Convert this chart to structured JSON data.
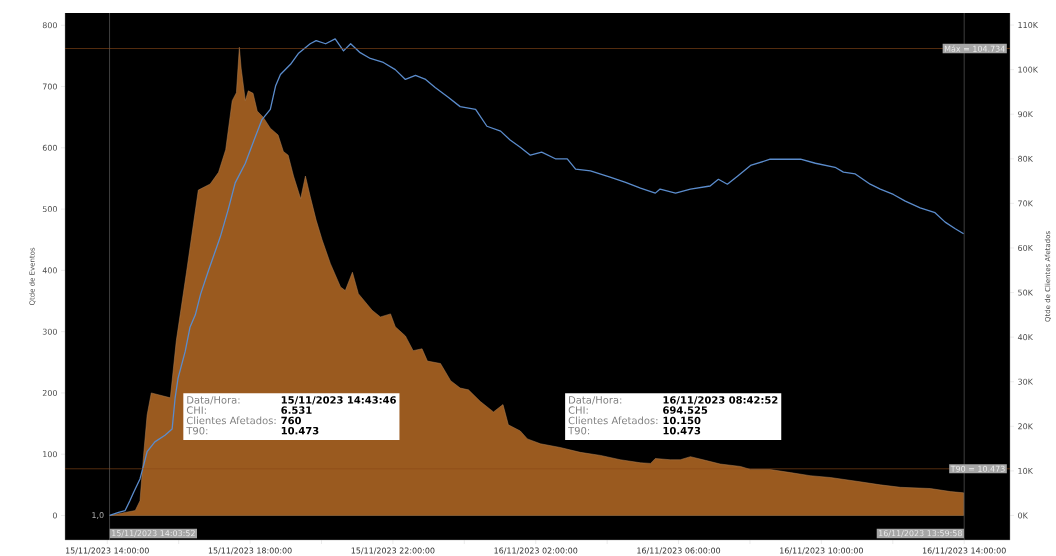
{
  "chart_data": {
    "type": "area",
    "ylabel": "Qtde de Eventos",
    "y2label": "Qtde de Clientes Afetados",
    "xlim": [
      "2023-11-15T12:49",
      "2023-11-16T15:17"
    ],
    "xticks": [
      {
        "value": "2023-11-15T14:00",
        "label": "15/11/2023 14:00:00"
      },
      {
        "value": "2023-11-15T16:00",
        "label": null
      },
      {
        "value": "2023-11-15T18:00",
        "label": "15/11/2023 18:00:00"
      },
      {
        "value": "2023-11-15T20:00",
        "label": null
      },
      {
        "value": "2023-11-15T22:00",
        "label": "15/11/2023 22:00:00"
      },
      {
        "value": "2023-11-16T00:00",
        "label": null
      },
      {
        "value": "2023-11-16T02:00",
        "label": "16/11/2023 02:00:00"
      },
      {
        "value": "2023-11-16T04:00",
        "label": null
      },
      {
        "value": "2023-11-16T06:00",
        "label": "16/11/2023 06:00:00"
      },
      {
        "value": "2023-11-16T08:00",
        "label": null
      },
      {
        "value": "2023-11-16T10:00",
        "label": "16/11/2023 10:00:00"
      },
      {
        "value": "2023-11-16T12:00",
        "label": null
      },
      {
        "value": "2023-11-16T14:00",
        "label": "16/11/2023 14:00:00"
      }
    ],
    "ylim": [
      -40,
      820
    ],
    "yticks": [
      0,
      100,
      200,
      300,
      400,
      500,
      600,
      700,
      800
    ],
    "y2lim": [
      -5500,
      112700
    ],
    "y2ticks": [
      {
        "value": 0,
        "label": "0K"
      },
      {
        "value": 10000,
        "label": "10K"
      },
      {
        "value": 20000,
        "label": "20K"
      },
      {
        "value": 30000,
        "label": "30K"
      },
      {
        "value": 40000,
        "label": "40K"
      },
      {
        "value": 50000,
        "label": "50K"
      },
      {
        "value": 60000,
        "label": "60K"
      },
      {
        "value": 70000,
        "label": "70K"
      },
      {
        "value": 80000,
        "label": "80K"
      },
      {
        "value": 90000,
        "label": "90K"
      },
      {
        "value": 100000,
        "label": "100K"
      },
      {
        "value": 110000,
        "label": "110K"
      }
    ],
    "series": [
      {
        "color": "#9a5a1f",
        "x": [
          "2023-11-15T14:04",
          "2023-11-15T14:30",
          "2023-11-15T14:47",
          "2023-11-15T14:55",
          "2023-11-15T15:01",
          "2023-11-15T15:07",
          "2023-11-15T15:14",
          "2023-11-15T15:46",
          "2023-11-15T15:56",
          "2023-11-15T16:13",
          "2023-11-15T16:21",
          "2023-11-15T16:33",
          "2023-11-15T16:53",
          "2023-11-15T17:07",
          "2023-11-15T17:19",
          "2023-11-15T17:30",
          "2023-11-15T17:37",
          "2023-11-15T17:42",
          "2023-11-15T17:45",
          "2023-11-15T17:52",
          "2023-11-15T17:57",
          "2023-11-15T18:05",
          "2023-11-15T18:12",
          "2023-11-15T18:22",
          "2023-11-15T18:34",
          "2023-11-15T18:47",
          "2023-11-15T18:56",
          "2023-11-15T19:04",
          "2023-11-15T19:13",
          "2023-11-15T19:25",
          "2023-11-15T19:33",
          "2023-11-15T19:41",
          "2023-11-15T19:51",
          "2023-11-15T20:01",
          "2023-11-15T20:15",
          "2023-11-15T20:32",
          "2023-11-15T20:40",
          "2023-11-15T20:52",
          "2023-11-15T21:02",
          "2023-11-15T21:25",
          "2023-11-15T21:39",
          "2023-11-15T21:56",
          "2023-11-15T22:04",
          "2023-11-15T22:21",
          "2023-11-15T22:34",
          "2023-11-15T22:49",
          "2023-11-15T22:58",
          "2023-11-15T23:20",
          "2023-11-15T23:37",
          "2023-11-15T23:53",
          "2023-11-16T00:07",
          "2023-11-16T00:27",
          "2023-11-16T00:49",
          "2023-11-16T01:05",
          "2023-11-16T01:14",
          "2023-11-16T01:34",
          "2023-11-16T01:46",
          "2023-11-16T02:08",
          "2023-11-16T02:41",
          "2023-11-16T03:15",
          "2023-11-16T03:49",
          "2023-11-16T04:22",
          "2023-11-16T04:56",
          "2023-11-16T05:13",
          "2023-11-16T05:21",
          "2023-11-16T05:46",
          "2023-11-16T06:03",
          "2023-11-16T06:20",
          "2023-11-16T06:45",
          "2023-11-16T07:10",
          "2023-11-16T07:44",
          "2023-11-16T08:01",
          "2023-11-16T08:34",
          "2023-11-16T09:08",
          "2023-11-16T09:41",
          "2023-11-16T10:15",
          "2023-11-16T11:05",
          "2023-11-16T11:39",
          "2023-11-16T12:13",
          "2023-11-16T13:03",
          "2023-11-16T13:37",
          "2023-11-16T13:59"
        ],
        "values": [
          0,
          5,
          8,
          24,
          98,
          164,
          200,
          192,
          285,
          396,
          450,
          531,
          541,
          560,
          597,
          677,
          690,
          764,
          730,
          677,
          693,
          689,
          660,
          650,
          632,
          621,
          594,
          588,
          554,
          517,
          554,
          521,
          482,
          450,
          411,
          373,
          367,
          397,
          362,
          335,
          324,
          329,
          308,
          293,
          269,
          272,
          252,
          248,
          220,
          208,
          205,
          186,
          169,
          181,
          148,
          138,
          125,
          117,
          111,
          103,
          98,
          91,
          86,
          85,
          93,
          91,
          91,
          96,
          90,
          84,
          80,
          75,
          75,
          70,
          65,
          62,
          55,
          50,
          46,
          44,
          39,
          37
        ]
      },
      {
        "type": "line",
        "axis": "y2",
        "color": "#5b8ccc",
        "x": [
          "2023-11-15T14:04",
          "2023-11-15T14:19",
          "2023-11-15T14:30",
          "2023-11-15T14:38",
          "2023-11-15T14:44",
          "2023-11-15T14:55",
          "2023-11-15T15:01",
          "2023-11-15T15:07",
          "2023-11-15T15:20",
          "2023-11-15T15:37",
          "2023-11-15T15:49",
          "2023-11-15T15:54",
          "2023-11-15T15:59",
          "2023-11-15T16:11",
          "2023-11-15T16:19",
          "2023-11-15T16:28",
          "2023-11-15T16:37",
          "2023-11-15T16:50",
          "2023-11-15T17:10",
          "2023-11-15T17:23",
          "2023-11-15T17:35",
          "2023-11-15T17:52",
          "2023-11-15T18:09",
          "2023-11-15T18:20",
          "2023-11-15T18:34",
          "2023-11-15T18:43",
          "2023-11-15T18:51",
          "2023-11-15T19:08",
          "2023-11-15T19:21",
          "2023-11-15T19:41",
          "2023-11-15T19:51",
          "2023-11-15T20:07",
          "2023-11-15T20:23",
          "2023-11-15T20:37",
          "2023-11-15T20:49",
          "2023-11-15T21:05",
          "2023-11-15T21:22",
          "2023-11-15T21:44",
          "2023-11-15T22:04",
          "2023-11-15T22:21",
          "2023-11-15T22:38",
          "2023-11-15T22:55",
          "2023-11-15T23:11",
          "2023-11-15T23:33",
          "2023-11-15T23:53",
          "2023-11-16T00:19",
          "2023-11-16T00:38",
          "2023-11-16T01:01",
          "2023-11-16T01:17",
          "2023-11-16T01:34",
          "2023-11-16T01:51",
          "2023-11-16T02:10",
          "2023-11-16T02:33",
          "2023-11-16T02:53",
          "2023-11-16T03:07",
          "2023-11-16T03:32",
          "2023-11-16T04:05",
          "2023-11-16T04:31",
          "2023-11-16T04:56",
          "2023-11-16T05:21",
          "2023-11-16T05:29",
          "2023-11-16T05:55",
          "2023-11-16T06:20",
          "2023-11-16T06:53",
          "2023-11-16T07:07",
          "2023-11-16T07:22",
          "2023-11-16T07:39",
          "2023-11-16T08:01",
          "2023-11-16T08:34",
          "2023-11-16T09:08",
          "2023-11-16T09:25",
          "2023-11-16T09:50",
          "2023-11-16T10:23",
          "2023-11-16T10:37",
          "2023-11-16T10:57",
          "2023-11-16T11:22",
          "2023-11-16T11:39",
          "2023-11-16T12:01",
          "2023-11-16T12:21",
          "2023-11-16T12:46",
          "2023-11-16T13:11",
          "2023-11-16T13:28",
          "2023-11-16T13:45",
          "2023-11-16T13:59"
        ],
        "values": [
          0,
          700,
          1100,
          3300,
          5100,
          8200,
          11200,
          14300,
          16500,
          18000,
          19400,
          26300,
          30800,
          36800,
          42200,
          45000,
          49700,
          54900,
          62500,
          68500,
          74600,
          79000,
          85000,
          88800,
          91100,
          96400,
          98900,
          101200,
          103600,
          105800,
          106500,
          105800,
          106900,
          104200,
          105800,
          103800,
          102500,
          101600,
          100000,
          97800,
          98700,
          97800,
          96000,
          93800,
          91700,
          91100,
          87300,
          86200,
          84200,
          82600,
          80800,
          81500,
          80000,
          80000,
          77700,
          77300,
          75900,
          74700,
          73400,
          72300,
          73200,
          72300,
          73200,
          73900,
          75400,
          74300,
          76100,
          78500,
          79900,
          79900,
          79900,
          79000,
          78100,
          77000,
          76600,
          74300,
          73200,
          72000,
          70500,
          69000,
          67900,
          65800,
          64300,
          63200
        ]
      }
    ],
    "ref_lines": [
      {
        "axis": "y2",
        "value": 104734,
        "label": "Máx = 104.734",
        "color": "#8b4a1a"
      },
      {
        "axis": "y2",
        "value": 10473,
        "label": "T90 = 10.473",
        "color": "#8b4a1a"
      },
      {
        "axis": "x",
        "value": "2023-11-15T14:03:52",
        "label": "15/11/2023 14:03:52",
        "color": "#808080"
      },
      {
        "axis": "x",
        "value": "2023-11-16T13:59:58",
        "label": "16/11/2023 13:59:58",
        "color": "#808080"
      }
    ],
    "annotations": [
      "Data/Hora:",
      "15/11/2023 14:43:46",
      "CHI:",
      "6.531",
      "Clientes Afetados:",
      "760",
      "T90:",
      "10.473",
      "Data/Hora:",
      "16/11/2023 08:42:52",
      "CHI:",
      "694.525",
      "Clientes Afetados:",
      "10.150",
      "T90:",
      "10.473",
      {
        "text": "1,0",
        "x": "2023-11-15T14:04",
        "y": 0
      }
    ]
  }
}
